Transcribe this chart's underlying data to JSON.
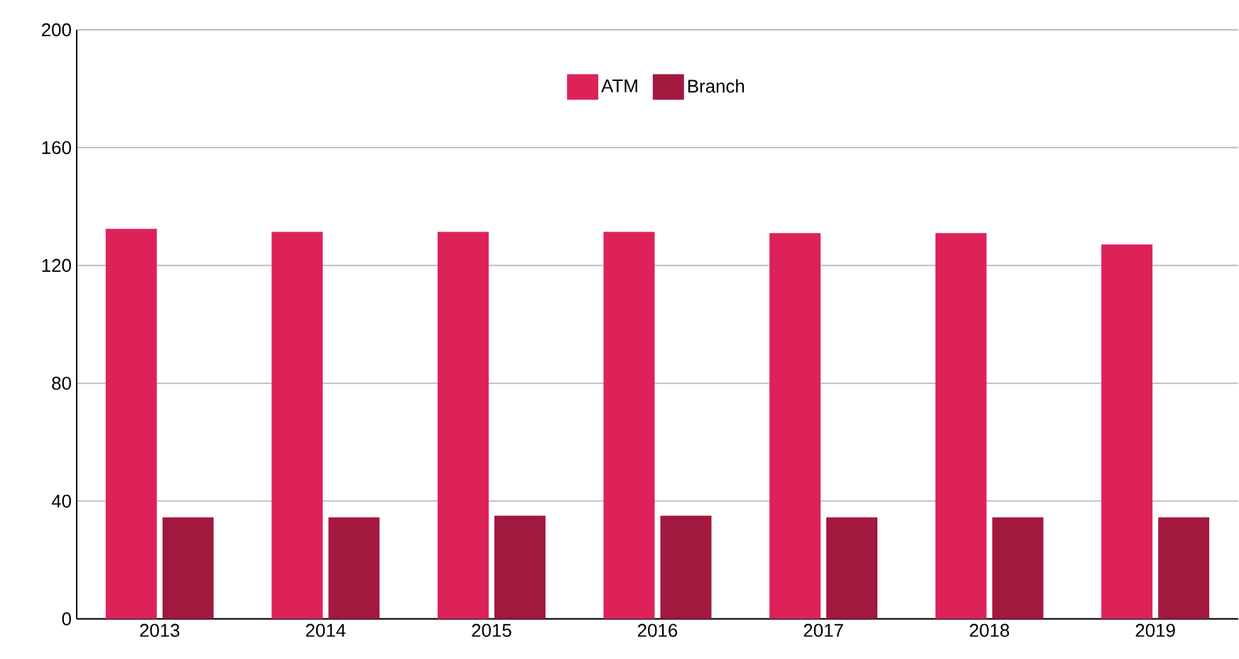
{
  "chart_data": {
    "type": "bar",
    "categories": [
      "2013",
      "2014",
      "2015",
      "2016",
      "2017",
      "2018",
      "2019"
    ],
    "series": [
      {
        "name": "ATM",
        "color": "#dd2259",
        "values": [
          132.4,
          131.4,
          131.4,
          131.4,
          131,
          131,
          127.1
        ]
      },
      {
        "name": "Branch",
        "color": "#a3183f",
        "values": [
          34.5,
          34.5,
          35,
          35,
          34.5,
          34.5,
          34.5
        ]
      }
    ],
    "ylim": [
      0,
      200
    ],
    "yticks": [
      0,
      40,
      80,
      120,
      160,
      200
    ],
    "grid": "y",
    "legend": "top"
  }
}
